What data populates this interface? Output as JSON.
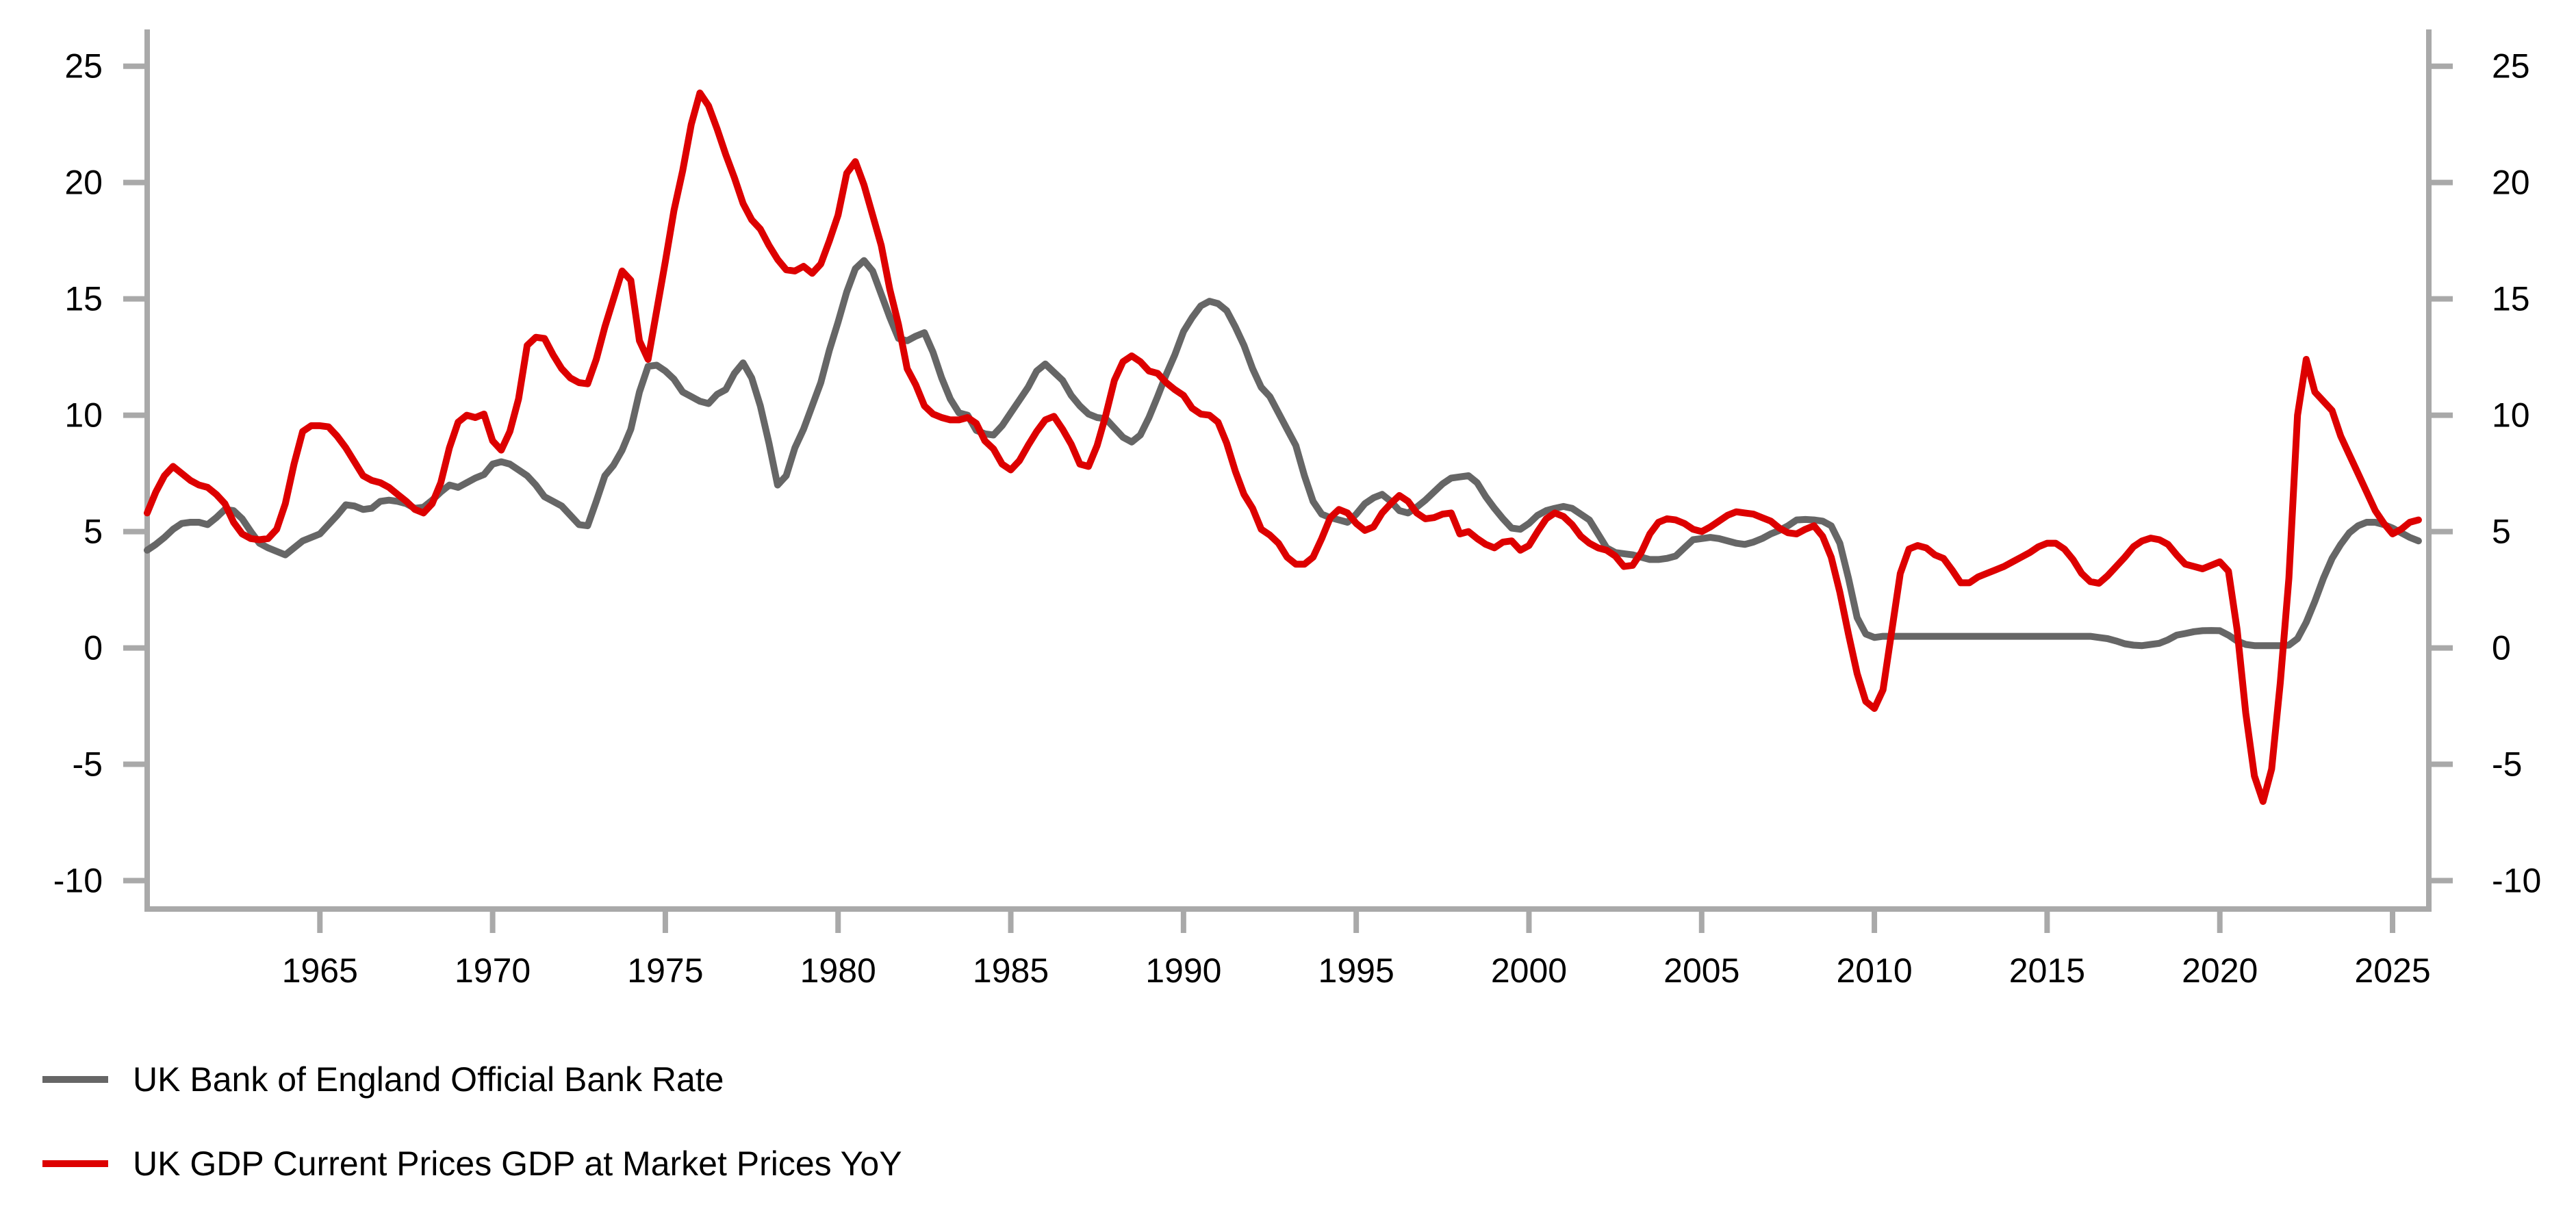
{
  "chart_data": {
    "type": "line",
    "title": "",
    "xlabel": "",
    "ylabel": "",
    "grid": false,
    "legend_position": "bottom-left",
    "axis_color": "#a9a9a9",
    "tick_label_color": "#000000",
    "xlim": [
      1960,
      2026.05
    ],
    "ylim": [
      -11.22,
      26.58
    ],
    "x_ticks": [
      1965,
      1970,
      1975,
      1980,
      1985,
      1990,
      1995,
      2000,
      2005,
      2010,
      2015,
      2020,
      2025
    ],
    "y_ticks": [
      -10,
      -5,
      0,
      5,
      10,
      15,
      20,
      25
    ],
    "y_axis_sides": [
      "left",
      "right"
    ],
    "x_start": 1960,
    "x_step": 0.25,
    "series": [
      {
        "name": "UK Bank of England Official Bank Rate",
        "color": "#666666",
        "values": [
          4.2,
          4.45,
          4.75,
          5.1,
          5.35,
          5.4,
          5.4,
          5.3,
          5.6,
          5.95,
          5.9,
          5.55,
          5.0,
          4.5,
          4.3,
          4.15,
          4.0,
          4.3,
          4.6,
          4.75,
          4.9,
          5.3,
          5.7,
          6.15,
          6.1,
          5.95,
          6.0,
          6.3,
          6.35,
          6.3,
          6.2,
          6.0,
          6.05,
          6.35,
          6.7,
          7.0,
          6.9,
          7.1,
          7.3,
          7.45,
          7.9,
          8.0,
          7.9,
          7.65,
          7.4,
          7.0,
          6.5,
          6.3,
          6.1,
          5.7,
          5.3,
          5.25,
          6.3,
          7.4,
          7.85,
          8.5,
          9.4,
          11.0,
          12.1,
          12.15,
          11.9,
          11.55,
          11.0,
          10.8,
          10.6,
          10.5,
          10.9,
          11.1,
          11.8,
          12.25,
          11.6,
          10.4,
          8.8,
          7.0,
          7.4,
          8.6,
          9.4,
          10.4,
          11.4,
          12.8,
          14.0,
          15.3,
          16.3,
          16.65,
          16.2,
          15.2,
          14.2,
          13.3,
          13.2,
          13.4,
          13.55,
          12.7,
          11.6,
          10.7,
          10.1,
          10.0,
          9.35,
          9.2,
          9.15,
          9.55,
          10.1,
          10.65,
          11.2,
          11.9,
          12.2,
          11.85,
          11.5,
          10.85,
          10.4,
          10.05,
          9.9,
          9.85,
          9.45,
          9.05,
          8.85,
          9.15,
          9.9,
          10.8,
          11.75,
          12.6,
          13.6,
          14.2,
          14.7,
          14.9,
          14.8,
          14.5,
          13.8,
          13.0,
          12.0,
          11.2,
          10.8,
          10.1,
          9.4,
          8.7,
          7.4,
          6.3,
          5.75,
          5.6,
          5.5,
          5.4,
          5.75,
          6.2,
          6.45,
          6.6,
          6.3,
          5.9,
          5.8,
          6.05,
          6.35,
          6.7,
          7.05,
          7.3,
          7.35,
          7.4,
          7.1,
          6.5,
          6.0,
          5.55,
          5.15,
          5.1,
          5.35,
          5.7,
          5.9,
          6.0,
          6.08,
          6.0,
          5.75,
          5.5,
          4.9,
          4.3,
          4.1,
          4.05,
          4.0,
          3.9,
          3.8,
          3.8,
          3.85,
          3.95,
          4.3,
          4.65,
          4.7,
          4.75,
          4.7,
          4.6,
          4.5,
          4.45,
          4.55,
          4.7,
          4.9,
          5.05,
          5.25,
          5.5,
          5.52,
          5.5,
          5.45,
          5.25,
          4.5,
          3.0,
          1.3,
          0.6,
          0.45,
          0.5,
          0.5,
          0.5,
          0.5,
          0.5,
          0.5,
          0.5,
          0.5,
          0.5,
          0.5,
          0.5,
          0.5,
          0.5,
          0.5,
          0.5,
          0.5,
          0.5,
          0.5,
          0.5,
          0.5,
          0.5,
          0.5,
          0.5,
          0.5,
          0.5,
          0.45,
          0.4,
          0.3,
          0.18,
          0.12,
          0.1,
          0.15,
          0.2,
          0.35,
          0.55,
          0.62,
          0.7,
          0.74,
          0.75,
          0.74,
          0.55,
          0.3,
          0.15,
          0.1,
          0.1,
          0.1,
          0.1,
          0.12,
          0.4,
          1.1,
          2.0,
          3.0,
          3.85,
          4.45,
          4.95,
          5.25,
          5.4,
          5.4,
          5.3,
          5.15,
          4.95,
          4.75,
          4.6
        ]
      },
      {
        "name": "UK GDP Current Prices GDP at Market Prices YoY",
        "color": "#dd0000",
        "values": [
          5.8,
          6.7,
          7.4,
          7.8,
          7.5,
          7.2,
          7.0,
          6.9,
          6.6,
          6.2,
          5.4,
          4.9,
          4.7,
          4.65,
          4.7,
          5.1,
          6.2,
          7.9,
          9.3,
          9.55,
          9.55,
          9.5,
          9.1,
          8.6,
          8.0,
          7.4,
          7.2,
          7.1,
          6.9,
          6.6,
          6.3,
          5.95,
          5.8,
          6.2,
          7.1,
          8.6,
          9.7,
          10.0,
          9.9,
          10.05,
          8.9,
          8.5,
          9.3,
          10.7,
          13.0,
          13.35,
          13.3,
          12.6,
          12.0,
          11.6,
          11.4,
          11.35,
          12.4,
          13.8,
          15.0,
          16.2,
          15.8,
          13.2,
          12.4,
          14.5,
          16.6,
          18.8,
          20.5,
          22.5,
          23.85,
          23.3,
          22.3,
          21.2,
          20.2,
          19.1,
          18.4,
          18.0,
          17.3,
          16.7,
          16.25,
          16.2,
          16.4,
          16.1,
          16.5,
          17.5,
          18.6,
          20.4,
          20.9,
          19.9,
          18.6,
          17.3,
          15.4,
          13.9,
          12.0,
          11.3,
          10.4,
          10.05,
          9.9,
          9.8,
          9.8,
          9.9,
          9.65,
          8.9,
          8.55,
          7.9,
          7.65,
          8.05,
          8.7,
          9.3,
          9.8,
          9.95,
          9.4,
          8.75,
          7.9,
          7.8,
          8.7,
          10.0,
          11.5,
          12.3,
          12.55,
          12.3,
          11.9,
          11.8,
          11.4,
          11.1,
          10.85,
          10.3,
          10.05,
          10.0,
          9.7,
          8.8,
          7.6,
          6.6,
          6.0,
          5.1,
          4.85,
          4.5,
          3.9,
          3.6,
          3.6,
          3.9,
          4.7,
          5.6,
          5.95,
          5.8,
          5.35,
          5.05,
          5.2,
          5.8,
          6.2,
          6.55,
          6.3,
          5.8,
          5.55,
          5.6,
          5.75,
          5.8,
          4.9,
          5.0,
          4.7,
          4.45,
          4.3,
          4.55,
          4.6,
          4.2,
          4.4,
          5.0,
          5.55,
          5.8,
          5.65,
          5.3,
          4.8,
          4.5,
          4.3,
          4.2,
          3.95,
          3.5,
          3.55,
          4.1,
          4.9,
          5.4,
          5.55,
          5.5,
          5.35,
          5.1,
          5.0,
          5.2,
          5.45,
          5.7,
          5.85,
          5.8,
          5.75,
          5.6,
          5.45,
          5.15,
          4.95,
          4.9,
          5.1,
          5.25,
          4.8,
          3.9,
          2.4,
          0.6,
          -1.1,
          -2.3,
          -2.6,
          -1.8,
          0.7,
          3.2,
          4.25,
          4.4,
          4.3,
          4.0,
          3.85,
          3.35,
          2.8,
          2.8,
          3.05,
          3.2,
          3.35,
          3.5,
          3.7,
          3.9,
          4.1,
          4.35,
          4.5,
          4.5,
          4.25,
          3.8,
          3.2,
          2.85,
          2.78,
          3.1,
          3.5,
          3.9,
          4.35,
          4.6,
          4.72,
          4.65,
          4.45,
          4.0,
          3.6,
          3.5,
          3.4,
          3.55,
          3.7,
          3.3,
          0.8,
          -2.8,
          -5.5,
          -6.6,
          -5.2,
          -1.5,
          3.0,
          10.0,
          12.4,
          11.0,
          10.6,
          10.2,
          9.1,
          8.3,
          7.5,
          6.7,
          5.9,
          5.35,
          4.9,
          5.1,
          5.4,
          5.5
        ]
      }
    ]
  },
  "legend": {
    "items": [
      {
        "label": "UK Bank of England Official Bank Rate",
        "color": "#666666"
      },
      {
        "label": "UK GDP Current Prices GDP at Market Prices YoY",
        "color": "#dd0000"
      }
    ]
  }
}
